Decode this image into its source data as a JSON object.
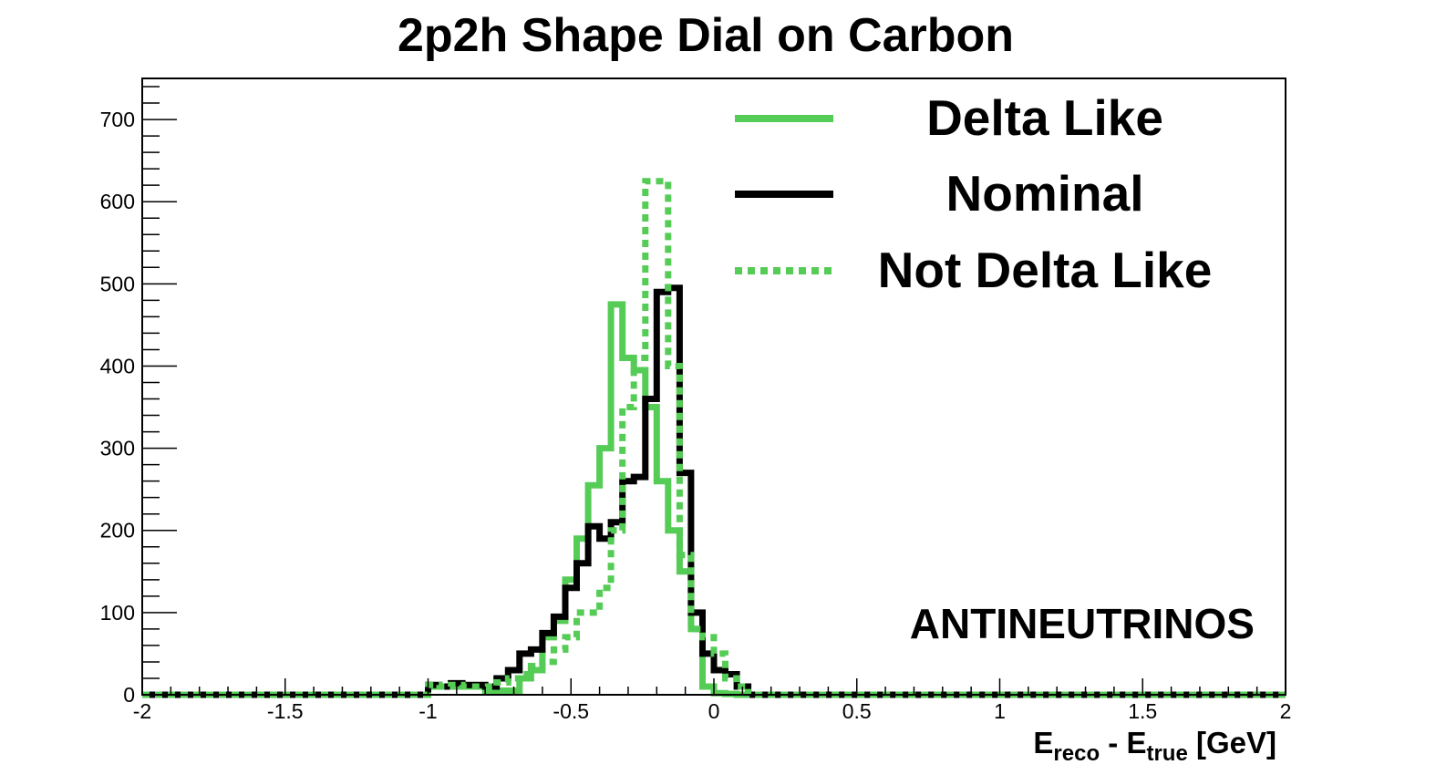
{
  "chart_data": {
    "type": "line",
    "title": "2p2h Shape Dial on Carbon",
    "xlabel": {
      "main": "E",
      "sub1": "reco",
      "sep": " - E",
      "sub2": "true",
      "unit": " [GeV]"
    },
    "ylabel": "",
    "xlim": [
      -2,
      2
    ],
    "ylim": [
      0,
      750
    ],
    "x_ticks": [
      "-2",
      "-1.5",
      "-1",
      "-0.5",
      "0",
      "0.5",
      "1",
      "1.5",
      "2"
    ],
    "y_ticks": [
      "0",
      "100",
      "200",
      "300",
      "400",
      "500",
      "600",
      "700"
    ],
    "annotation": "ANTINEUTRINOS",
    "legend_position": "top-right",
    "bin_edges_start": -1.0,
    "bin_width": 0.04,
    "series": [
      {
        "name": "Delta Like",
        "color": "#55cc55",
        "style": "solid",
        "values": [
          10,
          10,
          10,
          10,
          10,
          5,
          5,
          5,
          20,
          30,
          70,
          90,
          140,
          190,
          255,
          300,
          475,
          410,
          395,
          350,
          260,
          200,
          150,
          80,
          10,
          2,
          1,
          0
        ]
      },
      {
        "name": "Nominal",
        "color": "#000000",
        "style": "solid",
        "values": [
          12,
          10,
          14,
          12,
          12,
          10,
          20,
          30,
          50,
          55,
          75,
          95,
          130,
          160,
          205,
          190,
          210,
          260,
          265,
          360,
          490,
          495,
          270,
          100,
          50,
          30,
          25,
          10
        ]
      },
      {
        "name": "Not Delta Like",
        "color": "#55cc55",
        "style": "dotted",
        "values": [
          12,
          10,
          12,
          10,
          10,
          10,
          15,
          20,
          25,
          35,
          40,
          55,
          70,
          100,
          100,
          130,
          200,
          350,
          410,
          625,
          625,
          400,
          170,
          80,
          70,
          50,
          20,
          10
        ]
      }
    ]
  }
}
